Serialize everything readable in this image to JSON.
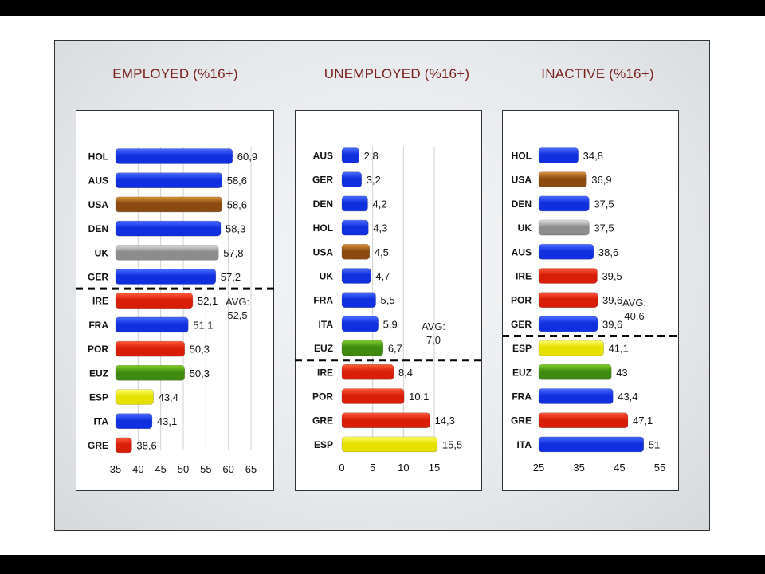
{
  "chart_data": [
    {
      "type": "bar",
      "orientation": "horizontal",
      "title": "EMPLOYED (%16+)",
      "categories": [
        "HOL",
        "AUS",
        "USA",
        "DEN",
        "UK",
        "GER",
        "IRE",
        "FRA",
        "POR",
        "EUZ",
        "ESP",
        "ITA",
        "GRE"
      ],
      "values": [
        60.9,
        58.6,
        58.6,
        58.3,
        57.8,
        57.2,
        52.1,
        51.1,
        50.3,
        50.3,
        43.4,
        43.1,
        38.6
      ],
      "value_labels": [
        "60,9",
        "58,6",
        "58,6",
        "58,3",
        "57,8",
        "57,2",
        "52,1",
        "51,1",
        "50,3",
        "50,3",
        "43,4",
        "43,1",
        "38,6"
      ],
      "bar_colors": [
        "blue",
        "blue",
        "orange",
        "blue",
        "gray",
        "blue",
        "red",
        "blue",
        "red",
        "green",
        "yellow",
        "blue",
        "red"
      ],
      "xlim": [
        35,
        65
      ],
      "xticks": [
        "35",
        "40",
        "45",
        "50",
        "55",
        "60",
        "65"
      ],
      "grid": true,
      "average": {
        "label_line1": "AVG:",
        "label_line2": "52,5",
        "value": 52.5,
        "after_category_index": 5
      }
    },
    {
      "type": "bar",
      "orientation": "horizontal",
      "title": "UNEMPLOYED (%16+)",
      "categories": [
        "AUS",
        "GER",
        "DEN",
        "HOL",
        "USA",
        "UK",
        "FRA",
        "ITA",
        "EUZ",
        "IRE",
        "POR",
        "GRE",
        "ESP"
      ],
      "values": [
        2.8,
        3.2,
        4.2,
        4.3,
        4.5,
        4.7,
        5.5,
        5.9,
        6.7,
        8.4,
        10.1,
        14.3,
        15.5
      ],
      "value_labels": [
        "2,8",
        "3,2",
        "4,2",
        "4,3",
        "4,5",
        "4,7",
        "5,5",
        "5,9",
        "6,7",
        "8,4",
        "10,1",
        "14,3",
        "15,5"
      ],
      "bar_colors": [
        "blue",
        "blue",
        "blue",
        "blue",
        "orange",
        "blue",
        "blue",
        "blue",
        "green",
        "red",
        "red",
        "red",
        "yellow"
      ],
      "xlim": [
        0,
        15
      ],
      "xticks": [
        "0",
        "5",
        "10",
        "15"
      ],
      "grid": true,
      "average": {
        "label_line1": "AVG:",
        "label_line2": "7,0",
        "value": 7.0,
        "after_category_index": 8
      }
    },
    {
      "type": "bar",
      "orientation": "horizontal",
      "title": "INACTIVE (%16+)",
      "categories": [
        "HOL",
        "USA",
        "DEN",
        "UK",
        "AUS",
        "IRE",
        "POR",
        "GER",
        "ESP",
        "EUZ",
        "FRA",
        "GRE",
        "ITA"
      ],
      "values": [
        34.8,
        36.9,
        37.5,
        37.5,
        38.6,
        39.5,
        39.6,
        39.6,
        41.1,
        43,
        43.4,
        47.1,
        51
      ],
      "value_labels": [
        "34,8",
        "36,9",
        "37,5",
        "37,5",
        "38,6",
        "39,5",
        "39,6",
        "39,6",
        "41,1",
        "43",
        "43,4",
        "47,1",
        "51"
      ],
      "bar_colors": [
        "blue",
        "orange",
        "blue",
        "gray",
        "blue",
        "red",
        "red",
        "blue",
        "yellow",
        "green",
        "blue",
        "red",
        "blue"
      ],
      "xlim": [
        25,
        55
      ],
      "xticks": [
        "25",
        "35",
        "45",
        "55"
      ],
      "grid": false,
      "average": {
        "label_line1": "AVG:",
        "label_line2": "40,6",
        "value": 40.6,
        "after_category_index": 7
      }
    }
  ],
  "palette": {
    "blue": [
      "#4a6cff",
      "#1030e0"
    ],
    "orange": [
      "#d9913a",
      "#8a4a10"
    ],
    "gray": [
      "#e0e0e0",
      "#8c8c8c"
    ],
    "red": [
      "#ff5a3a",
      "#d81e08"
    ],
    "green": [
      "#7fcf2a",
      "#3e8a10"
    ],
    "yellow": [
      "#ffff6a",
      "#e6e000"
    ]
  }
}
